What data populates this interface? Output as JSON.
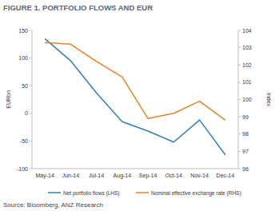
{
  "chart_data": {
    "type": "line",
    "title": "FIGURE 1. PORTFOLIO FLOWS AND EUR",
    "source": "Source: Bloomberg, ANZ Research",
    "y_label": "EURbn",
    "y2_label": "Index",
    "categories": [
      "May-14",
      "Jun-14",
      "Jul-14",
      "Aug-14",
      "Sep-14",
      "Oct-14",
      "Nov-14",
      "Dec-14"
    ],
    "series": [
      {
        "name": "Net portfolio flows (LHS)",
        "color": "#2f7fc1",
        "values": [
          135,
          95,
          37,
          -15,
          -32,
          -52,
          -12,
          -75
        ]
      },
      {
        "name": "Nominal effective exchange rate (RHS)",
        "color": "#e8822a",
        "axis": "y2",
        "values": [
          103.3,
          103.2,
          102.2,
          101.3,
          98.9,
          99.2,
          99.9,
          98.8
        ]
      }
    ],
    "ylim": [
      -100,
      150
    ],
    "yticks": [
      -100,
      -50,
      0,
      50,
      100,
      150
    ],
    "y2lim": [
      96,
      104
    ],
    "y2ticks": [
      96,
      97,
      98,
      99,
      100,
      101,
      102,
      103,
      104
    ],
    "grid": false,
    "legend": "bottom"
  }
}
